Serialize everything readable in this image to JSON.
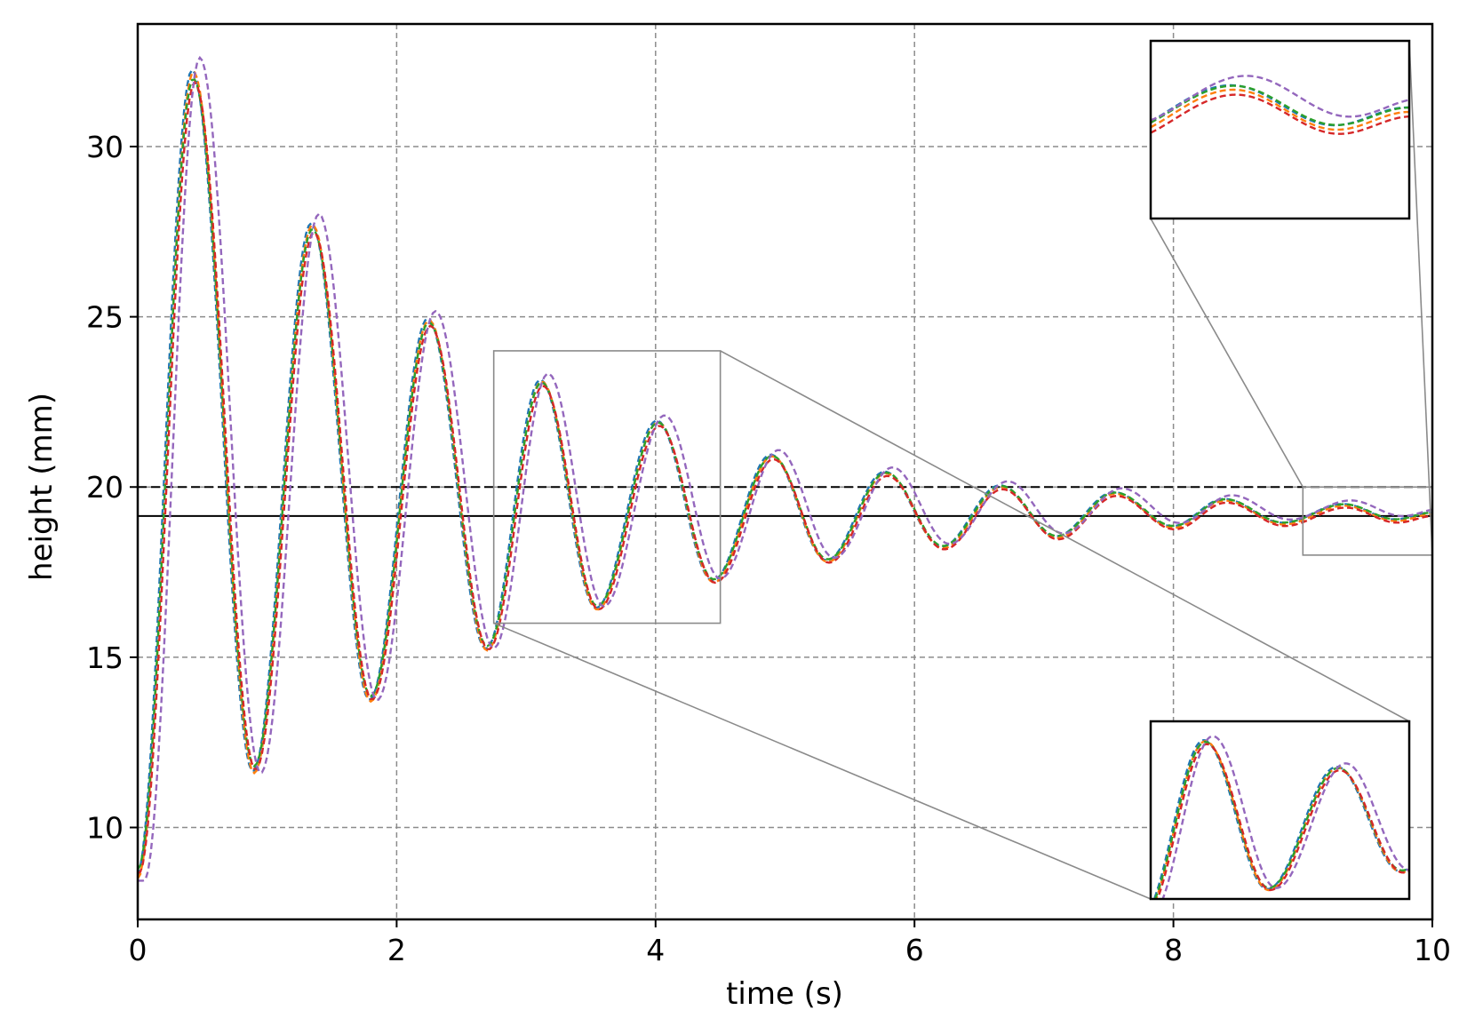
{
  "chart_data": {
    "type": "line",
    "xlabel": "time (s)",
    "ylabel": "height (mm)",
    "xlim": [
      0,
      10
    ],
    "ylim": [
      7.3,
      33.6
    ],
    "xticks": [
      0,
      2,
      4,
      6,
      8,
      10
    ],
    "yticks": [
      10,
      15,
      20,
      25,
      30
    ],
    "grid": true,
    "reference_lines": [
      {
        "y": 20.0,
        "style": "dashed",
        "color": "#000000"
      },
      {
        "y": 19.15,
        "style": "solid",
        "color": "#000000"
      }
    ],
    "series": [
      {
        "color": "#1f77b4",
        "style": "dashed",
        "time_shift": -0.01,
        "amp_scale": 1.0,
        "offset": 0.05
      },
      {
        "color": "#ff7f0e",
        "style": "dashed",
        "time_shift": 0.0,
        "amp_scale": 1.0,
        "offset": 0.0
      },
      {
        "color": "#2ca02c",
        "style": "dashed",
        "time_shift": 0.0,
        "amp_scale": 0.98,
        "offset": 0.05
      },
      {
        "color": "#d62728",
        "style": "dashed",
        "time_shift": 0.01,
        "amp_scale": 0.98,
        "offset": -0.05
      },
      {
        "color": "#9467bd",
        "style": "dashed",
        "time_shift": 0.05,
        "amp_scale": 1.02,
        "offset": 0.15
      }
    ],
    "extrema": [
      {
        "t": 0.0,
        "y": 8.5
      },
      {
        "t": 0.43,
        "y": 32.2
      },
      {
        "t": 0.9,
        "y": 11.6
      },
      {
        "t": 1.35,
        "y": 27.7
      },
      {
        "t": 1.8,
        "y": 13.7
      },
      {
        "t": 2.25,
        "y": 24.9
      },
      {
        "t": 2.7,
        "y": 15.2
      },
      {
        "t": 3.12,
        "y": 23.1
      },
      {
        "t": 3.55,
        "y": 16.4
      },
      {
        "t": 4.02,
        "y": 21.9
      },
      {
        "t": 4.45,
        "y": 17.2
      },
      {
        "t": 4.9,
        "y": 20.9
      },
      {
        "t": 5.33,
        "y": 17.8
      },
      {
        "t": 5.78,
        "y": 20.4
      },
      {
        "t": 6.22,
        "y": 18.2
      },
      {
        "t": 6.67,
        "y": 20.0
      },
      {
        "t": 7.1,
        "y": 18.5
      },
      {
        "t": 7.55,
        "y": 19.8
      },
      {
        "t": 8.0,
        "y": 18.8
      },
      {
        "t": 8.4,
        "y": 19.6
      },
      {
        "t": 8.85,
        "y": 18.9
      },
      {
        "t": 9.32,
        "y": 19.45
      },
      {
        "t": 9.72,
        "y": 19.0
      },
      {
        "t": 10.0,
        "y": 19.2
      }
    ],
    "insets": [
      {
        "xlim": [
          2.75,
          4.5
        ],
        "ylim": [
          16.0,
          24.0
        ],
        "placement": "bottom-right"
      },
      {
        "xlim": [
          9.0,
          10.0
        ],
        "ylim": [
          18.0,
          20.0
        ],
        "placement": "top-right"
      }
    ]
  }
}
